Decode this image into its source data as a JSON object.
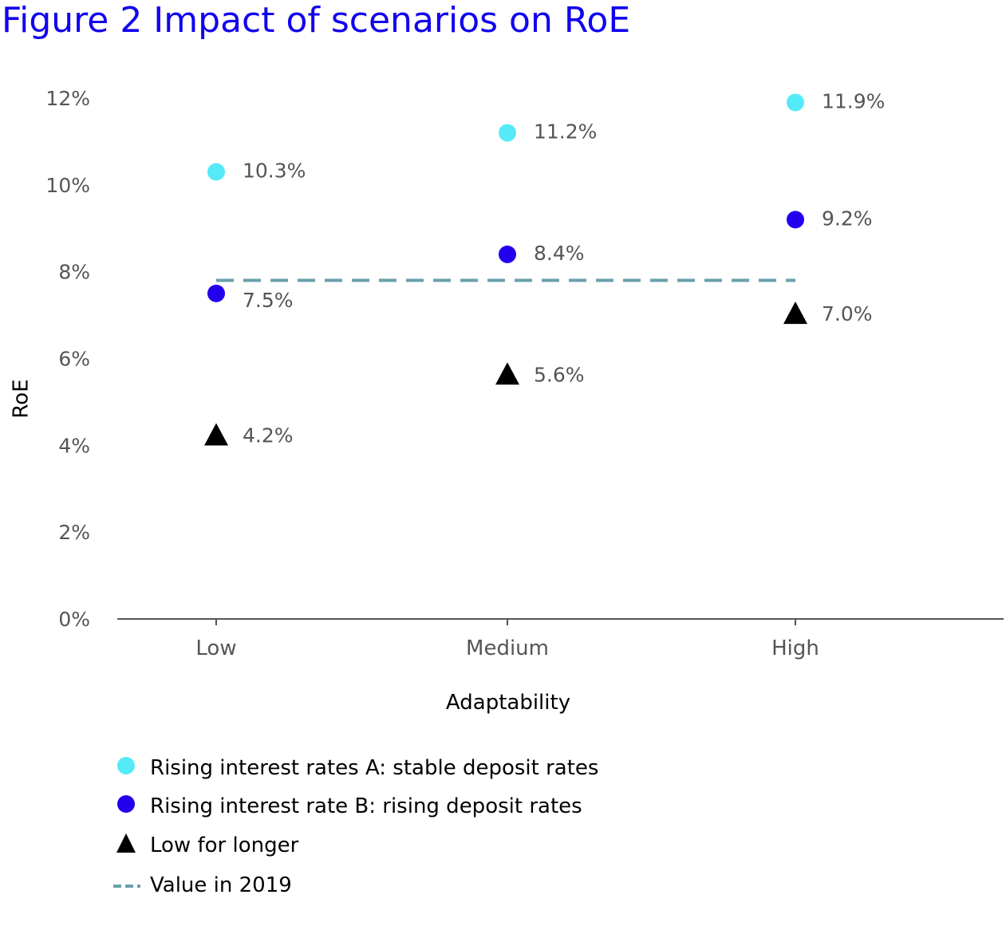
{
  "figure_title": "Figure 2  Impact of scenarios on RoE",
  "colors": {
    "title": "#1100ee",
    "scenario_a": "#55eaf7",
    "scenario_b": "#2200ee",
    "low_for_longer": "#000000",
    "value_2019": "#6aa0ab",
    "axis": "#555555",
    "tick_text": "#555555",
    "axis_title": "#000000"
  },
  "chart_data": {
    "type": "scatter",
    "title": "Impact of scenarios on RoE",
    "xlabel": "Adaptability",
    "ylabel": "RoE",
    "categories": [
      "Low",
      "Medium",
      "High"
    ],
    "y_ticks": [
      0,
      2,
      4,
      6,
      8,
      10,
      12
    ],
    "y_tick_labels": [
      "0%",
      "2%",
      "4%",
      "6%",
      "8%",
      "10%",
      "12%"
    ],
    "ylim": [
      0,
      12
    ],
    "grid": false,
    "legend_position": "bottom-left",
    "series": [
      {
        "name": "Rising interest rates A: stable deposit rates",
        "marker": "circle",
        "color": "#55eaf7",
        "values": [
          10.3,
          11.2,
          11.9
        ],
        "labels": [
          "10.3%",
          "11.2%",
          "11.9%"
        ]
      },
      {
        "name": "Rising interest rate B: rising deposit rates",
        "marker": "circle",
        "color": "#2200ee",
        "values": [
          7.5,
          8.4,
          9.2
        ],
        "labels": [
          "7.5%",
          "8.4%",
          "9.2%"
        ]
      },
      {
        "name": "Low for longer",
        "marker": "triangle",
        "color": "#000000",
        "values": [
          4.2,
          5.6,
          7.0
        ],
        "labels": [
          "4.2%",
          "5.6%",
          "7.0%"
        ]
      }
    ],
    "reference_line": {
      "name": "Value in 2019",
      "style": "dashed",
      "color": "#6aa0ab",
      "value": 7.8
    }
  }
}
